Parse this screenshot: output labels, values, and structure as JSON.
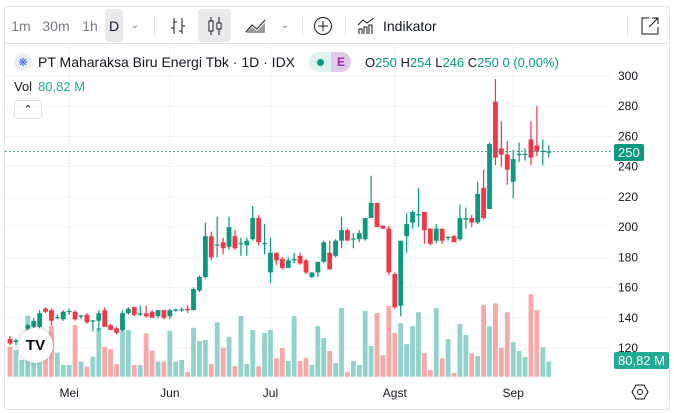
{
  "toolbar": {
    "intervals": [
      "1m",
      "30m",
      "1h",
      "D"
    ],
    "indicators_label": "Indikator"
  },
  "legend": {
    "symbol": "PT Maharaksa Biru Energi Tbk · 1D · IDX",
    "badge_letter": "E",
    "o_label": "O",
    "o": "250",
    "h_label": "H",
    "h": "254",
    "l_label": "L",
    "l": "246",
    "c_label": "C",
    "c": "250",
    "change": "0 (0,00%)"
  },
  "volume": {
    "label": "Vol",
    "value": "80,82 M",
    "badge": "80,82 M"
  },
  "colors": {
    "up": "#089981",
    "down": "#f23645",
    "up_vol": "#92d2cc",
    "down_vol": "#f7a9a7"
  },
  "chart_data": {
    "type": "candlestick",
    "price_ticks": [
      120,
      140,
      160,
      180,
      200,
      220,
      240,
      260,
      280,
      300
    ],
    "last_price": "250",
    "months": [
      {
        "label": "Mei",
        "index": 10
      },
      {
        "label": "Jun",
        "index": 27
      },
      {
        "label": "Jul",
        "index": 44
      },
      {
        "label": "Agst",
        "index": 65
      },
      {
        "label": "Sep",
        "index": 85
      }
    ],
    "ohlc": [
      [
        126,
        128,
        122,
        123
      ],
      [
        124,
        126,
        122,
        125
      ],
      [
        125,
        127,
        124,
        126
      ],
      [
        133,
        136,
        131,
        135
      ],
      [
        134,
        140,
        133,
        138
      ],
      [
        134,
        145,
        133,
        143
      ],
      [
        146,
        147,
        143,
        144
      ],
      [
        145,
        146,
        135,
        138
      ],
      [
        140,
        142,
        139,
        140.5
      ],
      [
        139,
        145,
        138,
        144
      ],
      [
        144,
        146,
        142,
        144.5
      ],
      [
        144,
        145,
        138,
        139
      ],
      [
        141,
        142,
        139,
        141.5
      ],
      [
        142,
        143,
        136,
        137
      ],
      [
        138,
        138.5,
        131,
        138.3
      ],
      [
        138,
        145,
        131,
        143
      ],
      [
        145,
        147,
        134,
        134
      ],
      [
        135,
        136,
        132,
        132
      ],
      [
        133,
        134,
        129,
        130
      ],
      [
        132,
        145,
        131,
        143
      ],
      [
        143,
        147,
        142,
        146
      ],
      [
        147,
        147,
        141,
        142
      ],
      [
        142,
        148,
        141,
        143
      ],
      [
        143,
        148,
        140,
        141
      ],
      [
        144,
        145,
        140,
        140
      ],
      [
        141,
        145,
        140,
        145
      ],
      [
        145,
        145,
        139,
        140
      ],
      [
        141,
        146,
        139,
        145
      ],
      [
        145,
        146,
        144,
        145.5
      ],
      [
        145,
        147,
        144,
        145.5
      ],
      [
        146,
        148,
        143,
        145
      ],
      [
        145,
        160,
        145,
        159
      ],
      [
        158,
        168,
        157,
        167
      ],
      [
        167,
        203,
        166,
        194
      ],
      [
        194,
        197,
        178,
        180
      ],
      [
        188,
        207,
        180,
        188.5
      ],
      [
        190,
        193,
        182,
        186
      ],
      [
        187,
        207,
        185,
        200
      ],
      [
        194,
        198,
        185,
        186
      ],
      [
        189,
        193,
        181,
        189.5
      ],
      [
        188,
        193,
        181,
        191
      ],
      [
        192,
        214,
        191,
        206
      ],
      [
        206,
        208,
        188,
        190
      ],
      [
        189,
        202,
        182,
        189.5
      ],
      [
        170,
        193,
        163,
        183
      ],
      [
        183,
        183,
        175,
        178
      ],
      [
        179,
        180,
        172,
        173
      ],
      [
        173,
        180,
        173,
        178
      ],
      [
        178,
        183,
        176,
        179
      ],
      [
        181,
        183,
        175,
        176
      ],
      [
        178,
        179,
        169,
        170
      ],
      [
        167,
        170,
        166,
        170
      ],
      [
        170,
        177,
        167,
        177
      ],
      [
        177,
        191,
        176,
        190
      ],
      [
        183,
        191,
        172,
        172
      ],
      [
        181,
        192,
        180,
        191
      ],
      [
        191,
        207,
        186,
        198
      ],
      [
        198,
        199,
        191,
        191
      ],
      [
        192,
        196,
        186,
        192.5
      ],
      [
        192,
        198,
        190,
        196
      ],
      [
        192,
        206,
        191,
        206
      ],
      [
        206,
        234,
        206,
        216
      ],
      [
        216,
        216,
        200,
        200
      ],
      [
        201,
        201,
        199,
        199
      ],
      [
        199,
        201,
        168,
        170
      ],
      [
        169,
        170,
        146,
        147
      ],
      [
        148,
        191,
        141,
        191
      ],
      [
        194,
        209,
        183,
        202
      ],
      [
        203,
        211,
        199,
        210
      ],
      [
        208,
        226,
        200,
        208.5
      ],
      [
        210,
        210,
        189,
        198
      ],
      [
        199,
        199,
        188,
        189
      ],
      [
        191,
        202,
        189,
        199
      ],
      [
        199,
        199,
        189,
        191
      ],
      [
        193,
        194,
        191,
        193.5
      ],
      [
        194,
        195,
        190,
        190
      ],
      [
        192,
        215,
        191,
        206
      ],
      [
        205,
        213,
        199,
        206
      ],
      [
        206,
        208,
        200,
        203
      ],
      [
        203,
        230,
        202,
        222
      ],
      [
        226,
        238,
        205,
        206
      ],
      [
        212,
        256,
        212,
        255
      ],
      [
        283,
        298,
        241,
        246
      ],
      [
        252,
        270,
        240,
        248
      ],
      [
        248,
        257,
        228,
        238
      ],
      [
        230,
        251,
        219,
        245
      ],
      [
        248,
        256,
        243,
        248.5
      ],
      [
        248,
        252,
        244,
        248.5
      ],
      [
        258,
        270,
        241,
        246
      ],
      [
        254,
        280,
        247,
        250
      ],
      [
        250,
        258,
        241,
        250.5
      ],
      [
        250,
        254,
        246,
        250
      ]
    ],
    "volumes_m": [
      161,
      143,
      90,
      328,
      150,
      120,
      100,
      274,
      129,
      63,
      63,
      277,
      81,
      54,
      107,
      263,
      161,
      148,
      68,
      256,
      251,
      63,
      63,
      233,
      140,
      81,
      81,
      247,
      81,
      90,
      25,
      263,
      192,
      197,
      68,
      292,
      156,
      215,
      57,
      326,
      68,
      251,
      57,
      235,
      251,
      100,
      154,
      84,
      326,
      84,
      100,
      63,
      272,
      208,
      138,
      73,
      369,
      25,
      84,
      63,
      353,
      165,
      342,
      116,
      380,
      235,
      288,
      175,
      272,
      347,
      127,
      36,
      369,
      100,
      202,
      20,
      283,
      224,
      125,
      111,
      385,
      272,
      394,
      156,
      347,
      186,
      138,
      106,
      444,
      358,
      159,
      80.82
    ]
  }
}
